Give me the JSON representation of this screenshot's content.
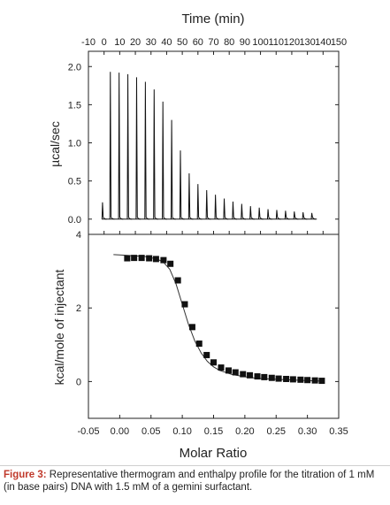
{
  "chart_data": [
    {
      "type": "line",
      "title": "",
      "xlabel": "Time (min)",
      "ylabel": "µcal/sec",
      "xlim": [
        -10,
        150
      ],
      "ylim": [
        -0.2,
        2.2
      ],
      "x_ticks": [
        "-10",
        "0",
        "10",
        "20",
        "30",
        "40",
        "50",
        "60",
        "70",
        "80",
        "90",
        "100",
        "110",
        "120",
        "130",
        "140",
        "150"
      ],
      "y_ticks": [
        "0.0",
        "0.5",
        "1.0",
        "1.5",
        "2.0"
      ],
      "series": [
        {
          "peak_times": [
            -1,
            4,
            9.6,
            15.2,
            20.8,
            26.4,
            32,
            37.6,
            43.2,
            48.8,
            54.4,
            60,
            65.6,
            71.2,
            76.8,
            82.4,
            88,
            93.6,
            99.2,
            104.8,
            110.4,
            116,
            121.6,
            127.2,
            132.8
          ],
          "peak_heights": [
            0.22,
            1.93,
            1.92,
            1.9,
            1.86,
            1.8,
            1.7,
            1.54,
            1.3,
            0.9,
            0.6,
            0.46,
            0.38,
            0.32,
            0.27,
            0.23,
            0.2,
            0.17,
            0.15,
            0.13,
            0.12,
            0.11,
            0.1,
            0.09,
            0.08
          ]
        }
      ]
    },
    {
      "type": "scatter",
      "title": "",
      "xlabel": "Molar Ratio",
      "ylabel": "kcal/mole of injectant",
      "xlim": [
        -0.05,
        0.35
      ],
      "ylim": [
        -1.0,
        4.0
      ],
      "x_ticks": [
        "-0.05",
        "0.00",
        "0.05",
        "0.10",
        "0.15",
        "0.20",
        "0.25",
        "0.30",
        "0.35"
      ],
      "y_ticks": [
        "0",
        "2",
        "4"
      ],
      "series": [
        {
          "x": [
            0.012,
            0.023,
            0.035,
            0.047,
            0.058,
            0.07,
            0.081,
            0.093,
            0.104,
            0.116,
            0.127,
            0.139,
            0.15,
            0.162,
            0.174,
            0.185,
            0.197,
            0.208,
            0.22,
            0.231,
            0.243,
            0.254,
            0.266,
            0.277,
            0.289,
            0.3,
            0.312,
            0.323
          ],
          "y": [
            3.35,
            3.36,
            3.36,
            3.35,
            3.33,
            3.3,
            3.2,
            2.75,
            2.1,
            1.48,
            1.03,
            0.72,
            0.52,
            0.38,
            0.3,
            0.25,
            0.2,
            0.17,
            0.14,
            0.12,
            0.1,
            0.08,
            0.07,
            0.06,
            0.05,
            0.04,
            0.03,
            0.02
          ]
        }
      ],
      "fit": {
        "x": [
          -0.01,
          0.0,
          0.02,
          0.04,
          0.06,
          0.07,
          0.08,
          0.09,
          0.1,
          0.11,
          0.12,
          0.13,
          0.14,
          0.15,
          0.16,
          0.18,
          0.2,
          0.22,
          0.25,
          0.28,
          0.31,
          0.325
        ],
        "y": [
          3.45,
          3.44,
          3.42,
          3.4,
          3.33,
          3.24,
          3.05,
          2.65,
          2.1,
          1.55,
          1.1,
          0.78,
          0.55,
          0.4,
          0.3,
          0.19,
          0.13,
          0.09,
          0.06,
          0.04,
          0.02,
          0.01
        ]
      }
    }
  ],
  "caption": {
    "label": "Figure 3:",
    "text": "Representative thermogram and enthalpy profile for the titration of 1 mM (in base pairs) DNA with 1.5 mM of a gemini surfactant."
  }
}
